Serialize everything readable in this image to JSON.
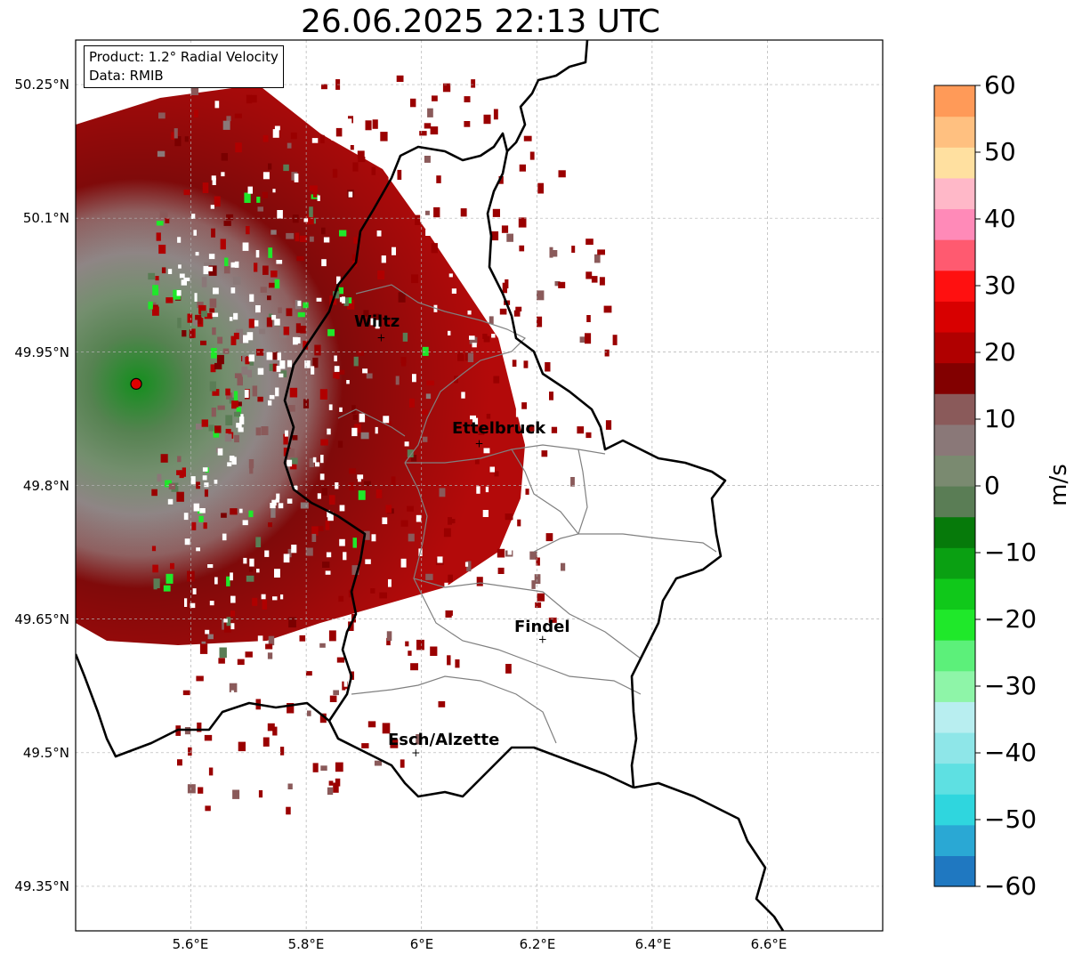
{
  "title": "26.06.2025 22:13 UTC",
  "info": {
    "product": "Product: 1.2° Radial Velocity",
    "source": "Data: RMIB"
  },
  "axes": {
    "lat_ticks": [
      "50.25°N",
      "50.1°N",
      "49.95°N",
      "49.8°N",
      "49.65°N",
      "49.5°N",
      "49.35°N"
    ],
    "lon_ticks": [
      "5.6°E",
      "5.8°E",
      "6°E",
      "6.2°E",
      "6.4°E",
      "6.6°E"
    ],
    "lat_range": [
      49.3,
      50.3
    ],
    "lon_range": [
      5.4,
      6.8
    ],
    "grid": true
  },
  "cities": [
    {
      "name": "Wiltz",
      "lon": 5.93,
      "lat": 49.966
    },
    {
      "name": "Ettelbruck",
      "lon": 6.1,
      "lat": 49.847
    },
    {
      "name": "Findel",
      "lon": 6.21,
      "lat": 49.627
    },
    {
      "name": "Esch/Alzette",
      "lon": 5.99,
      "lat": 49.5
    }
  ],
  "radar_site": {
    "lon": 5.505,
    "lat": 49.914,
    "color": "#e00000"
  },
  "colorbar": {
    "label": "m/s",
    "ticks": [
      "60",
      "50",
      "40",
      "30",
      "20",
      "10",
      "0",
      "−10",
      "−20",
      "−30",
      "−40",
      "−50",
      "−60"
    ],
    "range": [
      -60,
      60
    ],
    "colors": [
      "#1f78c1",
      "#2aa8d4",
      "#2fd6de",
      "#5ee0e2",
      "#8ee6e8",
      "#b8eef0",
      "#8ef5a8",
      "#5cf07a",
      "#1fe82a",
      "#10c81a",
      "#0aa012",
      "#067a0a",
      "#5a7d55",
      "#7a8a70",
      "#8a7878",
      "#8a5a5a",
      "#820000",
      "#b00000",
      "#d80000",
      "#ff1010",
      "#ff5a70",
      "#ff8ab8",
      "#ffb8c8",
      "#ffe0a0",
      "#ffc080",
      "#ff9a58"
    ]
  },
  "colors": {
    "border": "#000000",
    "canton_border": "#808080",
    "grid": "#b0b0b0"
  }
}
